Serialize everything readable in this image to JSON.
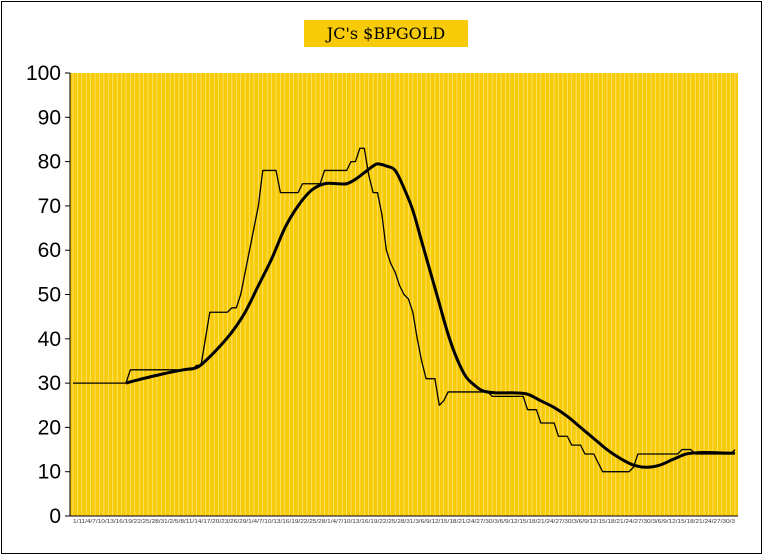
{
  "chart_data": {
    "type": "line",
    "title": "JC's $BPGOLD",
    "xlabel": "",
    "ylabel": "",
    "ylim": [
      0,
      100
    ],
    "yticks": [
      0,
      10,
      20,
      30,
      40,
      50,
      60,
      70,
      80,
      90,
      100
    ],
    "grid": "vertical",
    "legend": "none",
    "x_tick_labels": [
      "1/11/4/7/10/13/16/19/22/25/28/31/2/5/8/11/14/17/20/23/26/29/1/4/7/10/13/16/19/22/25/28/1/4/7/10/13/16/19/22/25/28/31/3/6/9/12/15/18/21/24/27/30/3/6/9/12/15/18/21/24/27/30/3/6/9/12/15/18/21/24/27/30/3/6/9/12/15/18/21/24/27/30/3"
    ],
    "x_count": 151,
    "colors": {
      "plot_background": "#f7cb08",
      "gridline": "#fde98a",
      "series_line": "#000000",
      "title_background": "#f7cb08"
    },
    "series": [
      {
        "style": "thin-step",
        "points": [
          [
            0,
            30
          ],
          [
            12,
            30
          ],
          [
            13,
            33
          ],
          [
            27,
            33
          ],
          [
            28,
            34
          ],
          [
            29,
            34
          ],
          [
            30,
            40
          ],
          [
            31,
            46
          ],
          [
            35,
            46
          ],
          [
            36,
            47
          ],
          [
            37,
            47
          ],
          [
            38,
            50
          ],
          [
            39,
            55
          ],
          [
            40,
            60
          ],
          [
            41,
            65
          ],
          [
            42,
            70
          ],
          [
            43,
            78
          ],
          [
            46,
            78
          ],
          [
            47,
            73
          ],
          [
            51,
            73
          ],
          [
            52,
            75
          ],
          [
            56,
            75
          ],
          [
            57,
            78
          ],
          [
            62,
            78
          ],
          [
            63,
            80
          ],
          [
            64,
            80
          ],
          [
            65,
            83
          ],
          [
            66,
            83
          ],
          [
            67,
            77
          ],
          [
            68,
            73
          ],
          [
            69,
            73
          ],
          [
            70,
            68
          ],
          [
            71,
            60
          ],
          [
            72,
            57
          ],
          [
            73,
            55
          ],
          [
            74,
            52
          ],
          [
            75,
            50
          ],
          [
            76,
            49
          ],
          [
            77,
            46
          ],
          [
            78,
            40
          ],
          [
            79,
            35
          ],
          [
            80,
            31
          ],
          [
            82,
            31
          ],
          [
            83,
            25
          ],
          [
            84,
            26
          ],
          [
            85,
            28
          ],
          [
            93,
            28
          ],
          [
            94,
            28
          ],
          [
            95,
            27
          ],
          [
            102,
            27
          ],
          [
            103,
            24
          ],
          [
            105,
            24
          ],
          [
            106,
            21
          ],
          [
            109,
            21
          ],
          [
            110,
            18
          ],
          [
            112,
            18
          ],
          [
            113,
            16
          ],
          [
            115,
            16
          ],
          [
            116,
            14
          ],
          [
            118,
            14
          ],
          [
            119,
            12
          ],
          [
            120,
            10
          ],
          [
            126,
            10
          ],
          [
            127,
            11
          ],
          [
            128,
            14
          ],
          [
            137,
            14
          ],
          [
            138,
            15
          ],
          [
            140,
            15
          ],
          [
            141,
            14
          ],
          [
            149,
            14
          ],
          [
            150,
            15
          ]
        ]
      },
      {
        "style": "thick-smooth",
        "points": [
          [
            12,
            30
          ],
          [
            15,
            30.8
          ],
          [
            20,
            32
          ],
          [
            25,
            33
          ],
          [
            28,
            33.5
          ],
          [
            30,
            35
          ],
          [
            33,
            38
          ],
          [
            36,
            41.5
          ],
          [
            39,
            46
          ],
          [
            42,
            52
          ],
          [
            45,
            58
          ],
          [
            48,
            65
          ],
          [
            51,
            70
          ],
          [
            54,
            73.5
          ],
          [
            57,
            75
          ],
          [
            60,
            75
          ],
          [
            62,
            75
          ],
          [
            64,
            76
          ],
          [
            66,
            77.5
          ],
          [
            68,
            79
          ],
          [
            69,
            79.5
          ],
          [
            71,
            79
          ],
          [
            73,
            78
          ],
          [
            75,
            74
          ],
          [
            77,
            69
          ],
          [
            79,
            62
          ],
          [
            81,
            55
          ],
          [
            83,
            48
          ],
          [
            85,
            41
          ],
          [
            87,
            35.5
          ],
          [
            89,
            31.5
          ],
          [
            91,
            29.5
          ],
          [
            93,
            28.2
          ],
          [
            96,
            27.8
          ],
          [
            100,
            27.8
          ],
          [
            103,
            27.5
          ],
          [
            106,
            26
          ],
          [
            109,
            24.5
          ],
          [
            112,
            22.5
          ],
          [
            115,
            20
          ],
          [
            118,
            17.5
          ],
          [
            121,
            15
          ],
          [
            124,
            13
          ],
          [
            127,
            11.5
          ],
          [
            130,
            11
          ],
          [
            133,
            11.5
          ],
          [
            136,
            12.8
          ],
          [
            139,
            14
          ],
          [
            142,
            14.3
          ],
          [
            145,
            14.3
          ],
          [
            148,
            14.2
          ],
          [
            150,
            14.2
          ]
        ]
      }
    ]
  }
}
